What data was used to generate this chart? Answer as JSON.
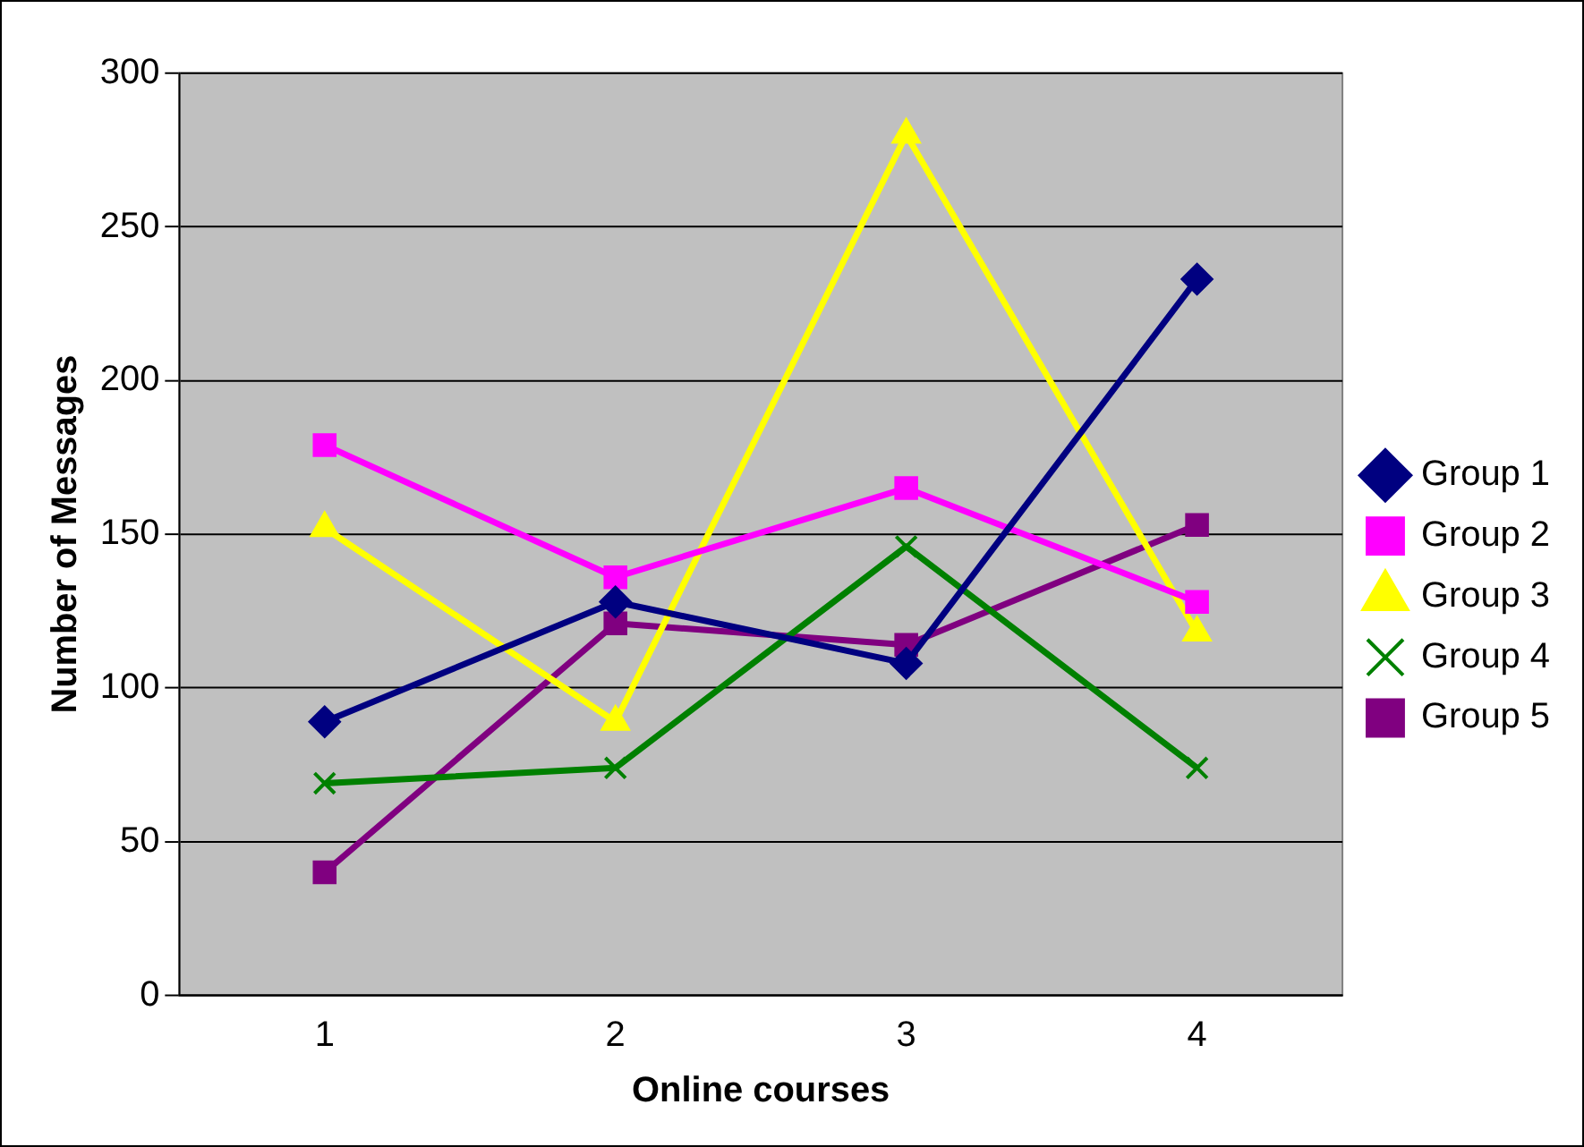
{
  "chart_data": {
    "type": "line",
    "xlabel": "Online courses",
    "ylabel": "Number of Messages",
    "categories": [
      "1",
      "2",
      "3",
      "4"
    ],
    "ylim": [
      0,
      300
    ],
    "yticks": [
      0,
      50,
      100,
      150,
      200,
      250,
      300
    ],
    "grid": "y",
    "legend": "right",
    "series": [
      {
        "name": "Group 1",
        "color": "#000080",
        "marker": "diamond",
        "values": [
          89,
          128,
          108,
          233
        ]
      },
      {
        "name": "Group 2",
        "color": "#ff00ff",
        "marker": "square",
        "values": [
          179,
          136,
          165,
          128
        ]
      },
      {
        "name": "Group 3",
        "color": "#ffff00",
        "marker": "triangle",
        "values": [
          152,
          89,
          280,
          118
        ]
      },
      {
        "name": "Group 4",
        "color": "#008000",
        "marker": "cross",
        "values": [
          69,
          74,
          146,
          74
        ]
      },
      {
        "name": "Group 5",
        "color": "#800080",
        "marker": "square",
        "values": [
          40,
          121,
          114,
          153
        ]
      }
    ]
  }
}
